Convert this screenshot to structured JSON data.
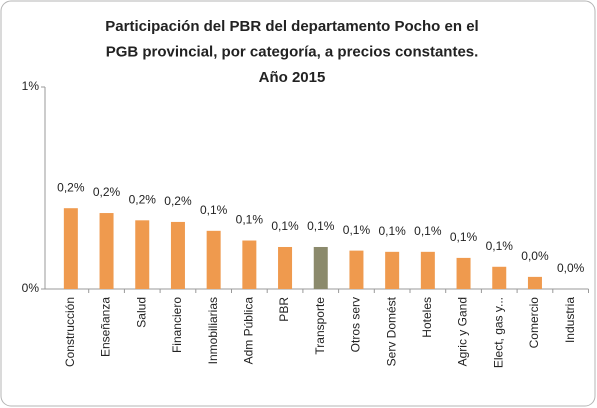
{
  "chart_data": {
    "type": "bar",
    "title": [
      "Participación del PBR del departamento Pocho en el",
      "PGB provincial, por categoría, a precios constantes.",
      "Año 2015"
    ],
    "categories": [
      "Construcción",
      "Enseñanza",
      "Salud",
      "Financiero",
      "Inmobiliarias",
      "Adm Pública",
      "PBR",
      "Transporte",
      "Otros serv",
      "Serv Domést",
      "Hoteles",
      "Agric y Gand",
      "Elect, gas y...",
      "Comercio",
      "Industria"
    ],
    "values": [
      0.2,
      0.188,
      0.17,
      0.166,
      0.144,
      0.12,
      0.104,
      0.104,
      0.095,
      0.092,
      0.092,
      0.077,
      0.055,
      0.03,
      0
    ],
    "value_labels": [
      "0,2%",
      "0,2%",
      "0,2%",
      "0,2%",
      "0,1%",
      "0,1%",
      "0,1%",
      "0,1%",
      "0,1%",
      "0,1%",
      "0,1%",
      "0,1%",
      "0,1%",
      "0,0%",
      "0,0%"
    ],
    "colors": [
      "#ef9a4e",
      "#ef9a4e",
      "#ef9a4e",
      "#ef9a4e",
      "#ef9a4e",
      "#ef9a4e",
      "#ef9a4e",
      "#8b8a6c",
      "#ef9a4e",
      "#ef9a4e",
      "#ef9a4e",
      "#ef9a4e",
      "#ef9a4e",
      "#ef9a4e",
      "#ef9a4e"
    ],
    "ylim": [
      0,
      0.5
    ],
    "yticks": [
      {
        "value": 0,
        "label": "0%"
      },
      {
        "value": 0.5,
        "label": "1%"
      }
    ]
  }
}
